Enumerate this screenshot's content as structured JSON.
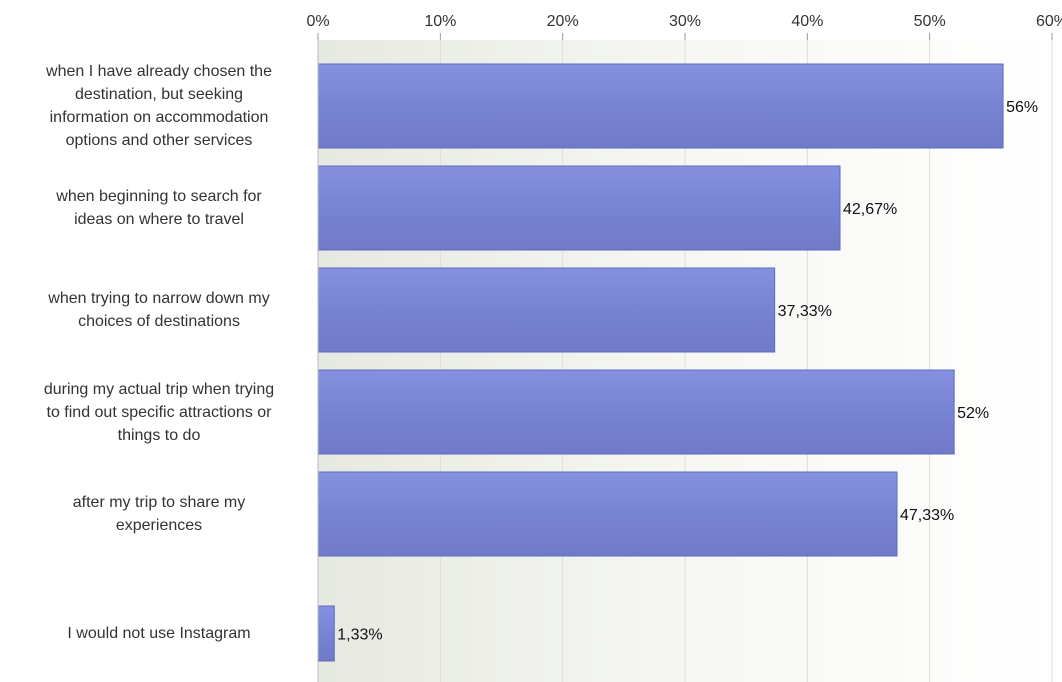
{
  "chart_data": {
    "type": "bar",
    "orientation": "horizontal",
    "title": "",
    "xlabel": "",
    "ylabel": "",
    "xlim": [
      0,
      60
    ],
    "ticks": [
      0,
      10,
      20,
      30,
      40,
      50,
      60
    ],
    "tick_labels": [
      "0%",
      "10%",
      "20%",
      "30%",
      "40%",
      "50%",
      "60%"
    ],
    "grid": true,
    "categories": [
      "when I have already chosen the destination, but seeking information on accommodation options and other services",
      "when beginning to search for ideas on where to travel",
      "when trying to narrow down my choices of destinations",
      "during my actual trip when trying to find out specific attractions or things to do",
      "after my trip to share my experiences",
      "I would not use Instagram"
    ],
    "values": [
      56,
      42.67,
      37.33,
      52,
      47.33,
      1.33
    ],
    "value_labels": [
      "56%",
      "42,67%",
      "37,33%",
      "52%",
      "47,33%",
      "1,33%"
    ],
    "bar_color": "#7b87d6"
  },
  "labels_wrapped": [
    [
      "when I have already chosen the",
      "destination, but seeking",
      "information on accommodation",
      "options and other services"
    ],
    [
      "when beginning to search for",
      "ideas on where to travel"
    ],
    [
      "when trying to narrow down my",
      "choices of destinations"
    ],
    [
      "during my actual trip when trying",
      "to find out specific attractions or",
      "things to do"
    ],
    [
      "after my trip to share my",
      "experiences"
    ],
    [
      "I would not use Instagram"
    ]
  ]
}
